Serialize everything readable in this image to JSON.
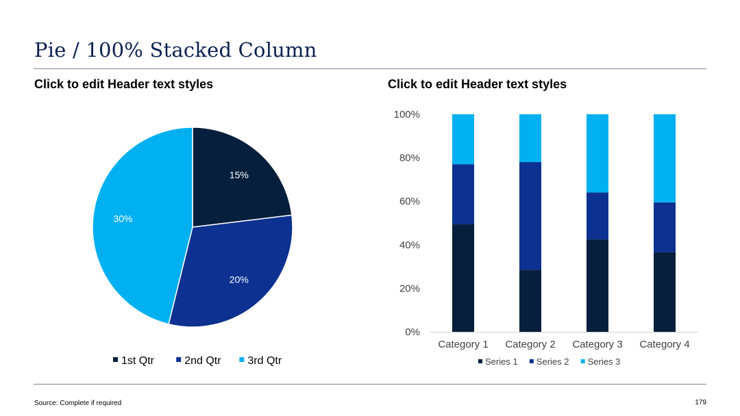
{
  "slide": {
    "title": "Pie / 100% Stacked Column",
    "source": "Source: Complete if required",
    "page_number": "179"
  },
  "colors": {
    "title": "#0b2150",
    "dark_navy": "#061f3c",
    "royal_blue": "#0c3190",
    "sky_blue": "#00b0f0",
    "rule": "#7a8596"
  },
  "chart_data": [
    {
      "type": "pie",
      "title": "Click to edit Header text styles",
      "categories": [
        "1st Qtr",
        "2nd Qtr",
        "3rd Qtr"
      ],
      "values": [
        15,
        20,
        30
      ],
      "data_labels": [
        "15%",
        "20%",
        "30%"
      ],
      "colors": [
        "#061f3c",
        "#0c3190",
        "#00b0f0"
      ],
      "legend": "bottom",
      "start_angle": "12 o'clock, clockwise"
    },
    {
      "type": "bar",
      "stacked": "percent",
      "title": "Click to edit Header text styles",
      "categories": [
        "Category 1",
        "Category 2",
        "Category 3",
        "Category 4"
      ],
      "series": [
        {
          "name": "Series 1",
          "values": [
            49.5,
            28.5,
            42.5,
            36.5
          ],
          "color": "#061f3c"
        },
        {
          "name": "Series 2",
          "values": [
            27.5,
            49.5,
            21.5,
            23.0
          ],
          "color": "#0c3190"
        },
        {
          "name": "Series 3",
          "values": [
            23.0,
            22.0,
            36.0,
            40.5
          ],
          "color": "#00b0f0"
        }
      ],
      "y_ticks": [
        "0%",
        "20%",
        "40%",
        "60%",
        "80%",
        "100%"
      ],
      "ylim": [
        0,
        100
      ],
      "grid": false,
      "legend": "bottom"
    }
  ]
}
